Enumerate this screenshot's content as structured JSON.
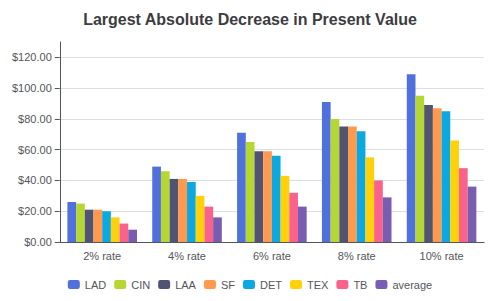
{
  "chart_data": {
    "type": "bar",
    "title": "Largest Absolute Decrease in Present Value",
    "categories": [
      "2% rate",
      "4% rate",
      "6% rate",
      "8% rate",
      "10% rate"
    ],
    "series": [
      {
        "name": "LAD",
        "values": [
          26,
          49,
          71,
          91,
          109
        ]
      },
      {
        "name": "CIN",
        "values": [
          25,
          46,
          65,
          80,
          95
        ]
      },
      {
        "name": "LAA",
        "values": [
          21,
          41,
          59,
          75,
          89
        ]
      },
      {
        "name": "SF",
        "values": [
          21,
          41,
          59,
          75,
          87
        ]
      },
      {
        "name": "DET",
        "values": [
          20,
          39,
          56,
          72,
          85
        ]
      },
      {
        "name": "TEX",
        "values": [
          16,
          30,
          43,
          55,
          66
        ]
      },
      {
        "name": "TB",
        "values": [
          12,
          23,
          32,
          40,
          48
        ]
      },
      {
        "name": "average",
        "values": [
          8,
          16,
          23,
          29,
          36
        ]
      }
    ],
    "ylim": [
      0,
      130
    ],
    "yticks": [
      {
        "value": 0,
        "label": "$0.00"
      },
      {
        "value": 20,
        "label": "$20.00"
      },
      {
        "value": 40,
        "label": "$40.00"
      },
      {
        "value": 60,
        "label": "$60.00"
      },
      {
        "value": 80,
        "label": "$80.00"
      },
      {
        "value": 100,
        "label": "$100.00"
      },
      {
        "value": 120,
        "label": "$120.00"
      }
    ],
    "grid": true,
    "legend": "bottom"
  }
}
